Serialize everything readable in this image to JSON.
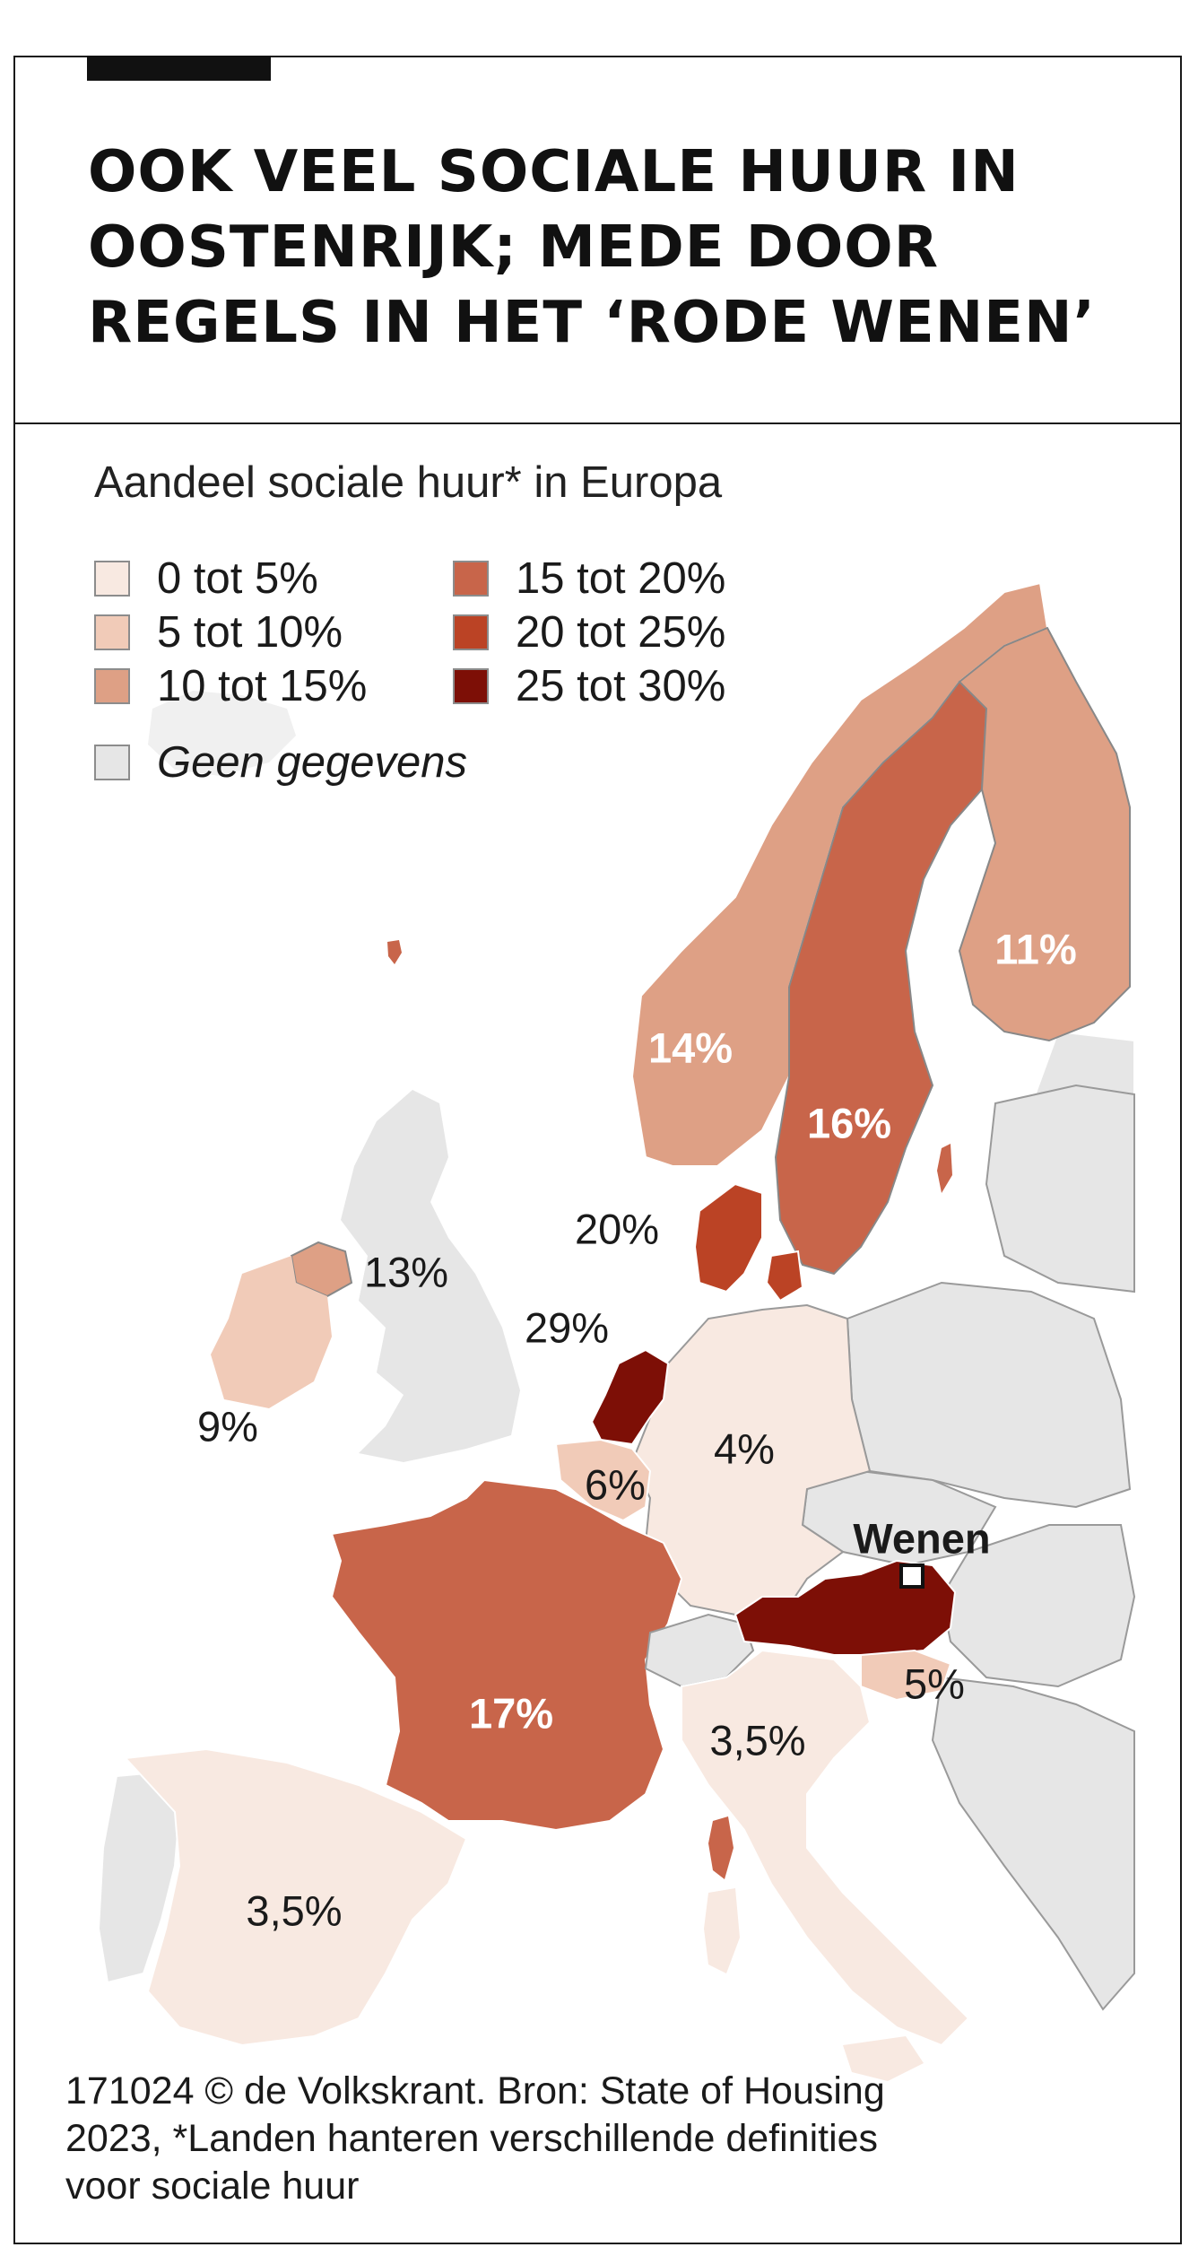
{
  "header": {
    "title_lines": [
      "OOK VEEL SOCIALE HUUR IN",
      "OOSTENRIJK; MEDE DOOR",
      "REGELS IN HET ‘RODE WENEN’"
    ]
  },
  "map": {
    "subtitle": "Aandeel sociale huur* in Europa",
    "legend": [
      {
        "label": "0 tot 5%",
        "color": "#f8e9e1"
      },
      {
        "label": "5 tot 10%",
        "color": "#f1cbb8"
      },
      {
        "label": "10 tot 15%",
        "color": "#dea085"
      },
      {
        "label": "15 tot 20%",
        "color": "#c8654a"
      },
      {
        "label": "20 tot 25%",
        "color": "#bb4325"
      },
      {
        "label": "25 tot 30%",
        "color": "#7d0f06"
      }
    ],
    "no_data": {
      "label": "Geen gegevens",
      "color": "#e6e6e6"
    },
    "countries": {
      "finland": "11%",
      "norway": "14%",
      "sweden": "16%",
      "denmark": "20%",
      "uk": "13%",
      "netherlands": "29%",
      "ireland": "9%",
      "belgium": "6%",
      "germany": "4%",
      "france": "17%",
      "italy": "3,5%",
      "spain": "3,5%",
      "slovenia": "5%"
    },
    "city": "Wenen"
  },
  "footer": {
    "lines": [
      "171024 © de Volkskrant. Bron: State of Housing",
      "2023, *Landen hanteren verschillende definities",
      "voor sociale huur"
    ]
  }
}
